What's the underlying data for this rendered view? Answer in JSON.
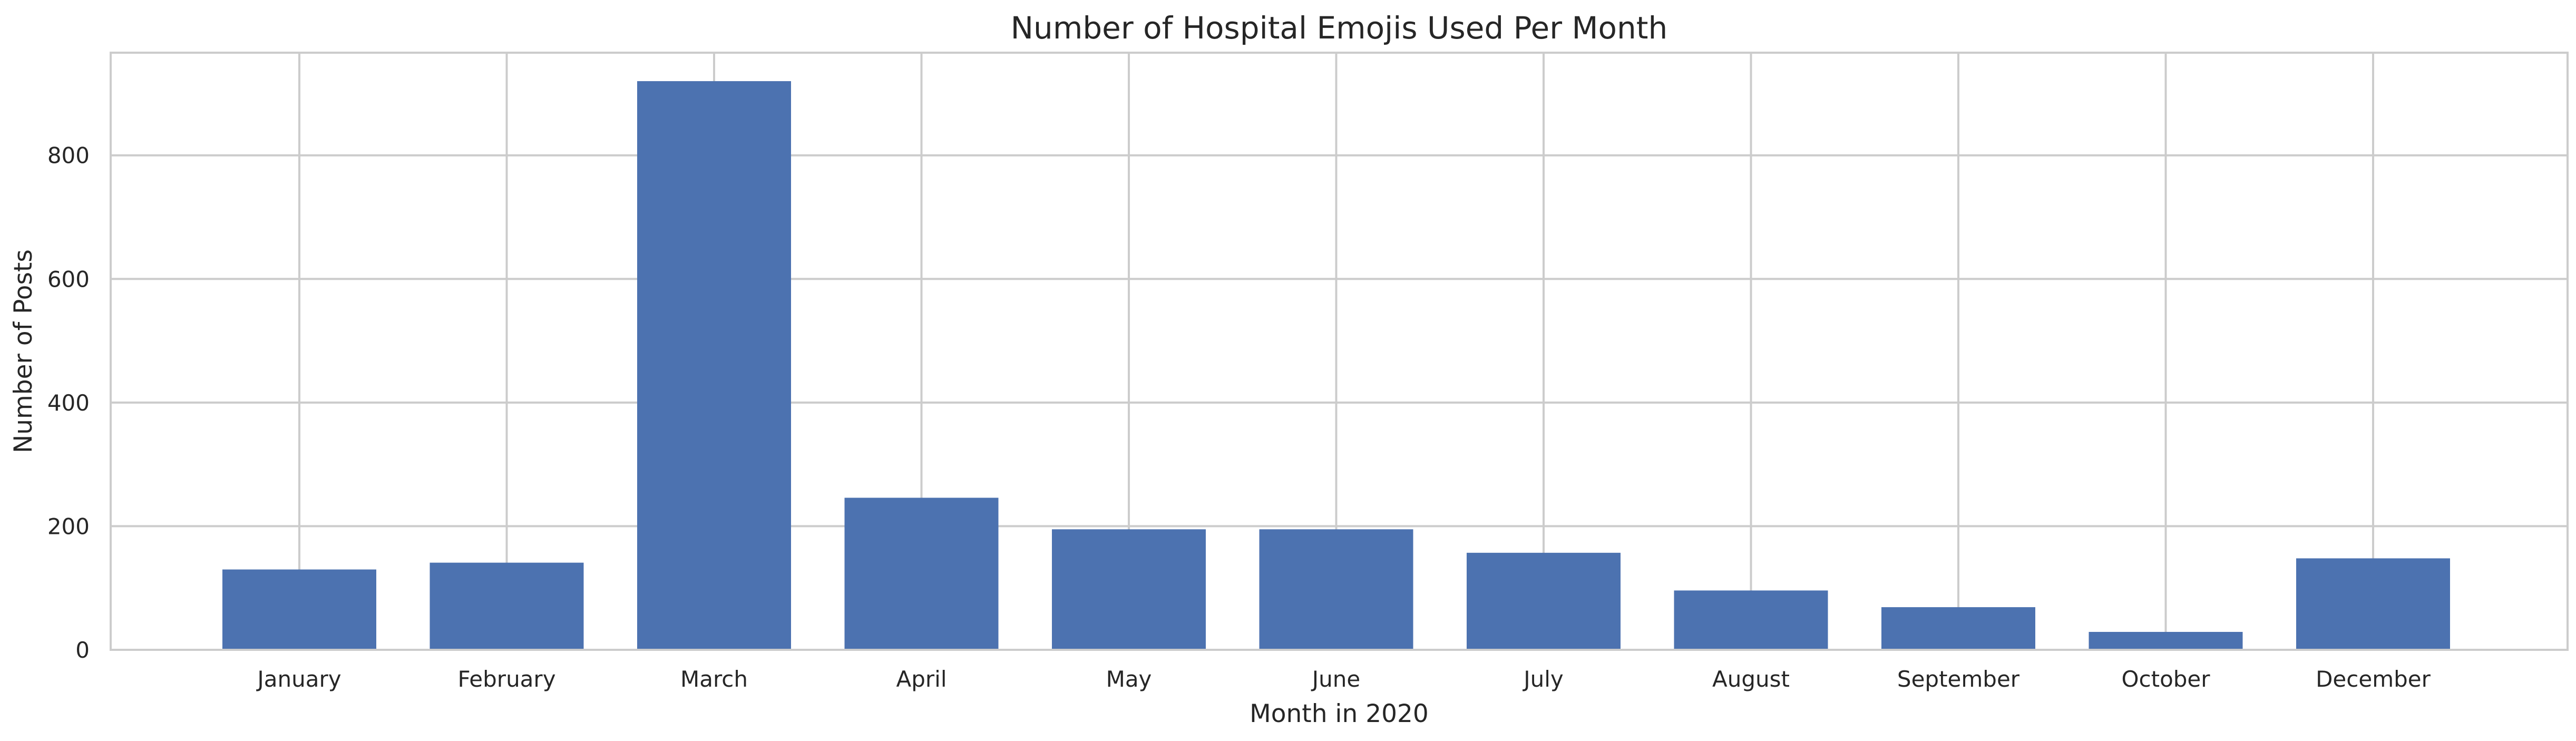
{
  "chart_data": {
    "type": "bar",
    "title": "Number of Hospital Emojis Used Per Month",
    "xlabel": "Month in 2020",
    "ylabel": "Number of Posts",
    "categories": [
      "January",
      "February",
      "March",
      "April",
      "May",
      "June",
      "July",
      "August",
      "September",
      "October",
      "December"
    ],
    "values": [
      130,
      141,
      920,
      246,
      195,
      195,
      157,
      96,
      69,
      29,
      148
    ],
    "ylim": [
      0,
      966
    ],
    "yticks": [
      0,
      200,
      400,
      600,
      800
    ],
    "grid": true,
    "bar_color": "#4c72b0",
    "grid_color": "#cccccc"
  }
}
